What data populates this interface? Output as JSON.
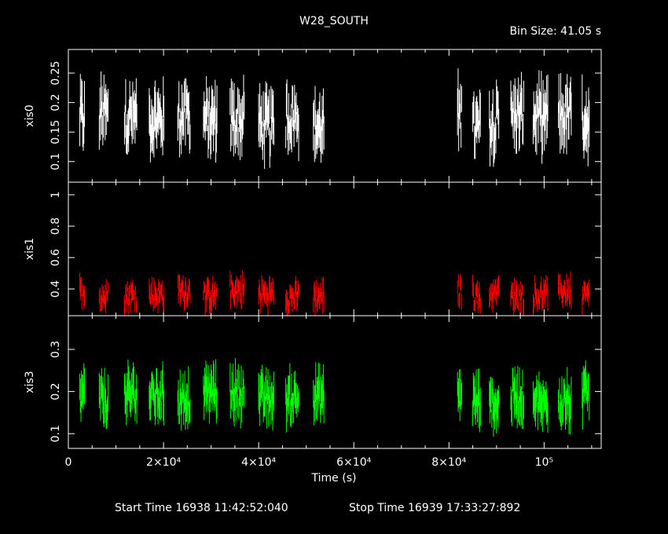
{
  "chart_data": {
    "type": "scatter",
    "title": "W28_SOUTH",
    "bin_size_label": "Bin Size: 41.05 s",
    "xlabel": "Time (s)",
    "xlim": [
      0,
      112000
    ],
    "x_ticks": [
      {
        "value": 0,
        "label": "0"
      },
      {
        "value": 20000,
        "label": "2×10⁴"
      },
      {
        "value": 40000,
        "label": "4×10⁴"
      },
      {
        "value": 60000,
        "label": "6×10⁴"
      },
      {
        "value": 80000,
        "label": "8×10⁴"
      },
      {
        "value": 100000,
        "label": "10⁵"
      }
    ],
    "footer": {
      "start": "Start Time 16938 11:42:52:040",
      "stop": "Stop Time 16939 17:33:27:892"
    },
    "segments": [
      [
        2400,
        3400
      ],
      [
        6500,
        8400
      ],
      [
        11800,
        14400
      ],
      [
        17000,
        20200
      ],
      [
        23000,
        25700
      ],
      [
        28400,
        31300
      ],
      [
        34000,
        37000
      ],
      [
        40000,
        43300
      ],
      [
        45700,
        48500
      ],
      [
        51500,
        53800
      ],
      [
        81800,
        82700
      ],
      [
        85000,
        86700
      ],
      [
        88500,
        90500
      ],
      [
        93000,
        95800
      ],
      [
        97700,
        100800
      ],
      [
        103000,
        105800
      ],
      [
        108000,
        109500
      ]
    ],
    "panels": [
      {
        "name": "xis0",
        "color": "#ffffff",
        "ylim": [
          0.065,
          0.29
        ],
        "y_ticks": [
          {
            "value": 0.1,
            "label": "0.1"
          },
          {
            "value": 0.15,
            "label": "0.15"
          },
          {
            "value": 0.2,
            "label": "0.2"
          },
          {
            "value": 0.25,
            "label": "0.25"
          }
        ],
        "mean": 0.17,
        "spread": 0.05,
        "err": 0.03
      },
      {
        "name": "xis1",
        "color": "#ff0000",
        "ylim": [
          0.23,
          1.08
        ],
        "y_ticks": [
          {
            "value": 0.4,
            "label": "0.4"
          },
          {
            "value": 0.6,
            "label": "0.6"
          },
          {
            "value": 0.8,
            "label": "0.8"
          },
          {
            "value": 1,
            "label": "1"
          }
        ],
        "mean": 0.37,
        "spread": 0.09,
        "err": 0.05
      },
      {
        "name": "xis3",
        "color": "#00ff00",
        "ylim": [
          0.065,
          0.38
        ],
        "y_ticks": [
          {
            "value": 0.1,
            "label": "0.1"
          },
          {
            "value": 0.2,
            "label": "0.2"
          },
          {
            "value": 0.3,
            "label": "0.3"
          }
        ],
        "mean": 0.185,
        "spread": 0.05,
        "err": 0.035
      }
    ]
  }
}
